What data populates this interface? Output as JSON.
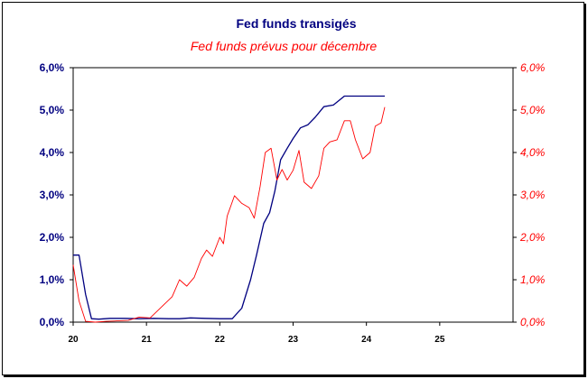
{
  "chart_data": {
    "type": "line",
    "title": "Fed funds transigés",
    "subtitle": "Fed funds prévus pour décembre",
    "xlabel": "",
    "ylabel_left": "",
    "ylabel_right": "",
    "xlim": [
      20,
      26
    ],
    "ylim": [
      0,
      6
    ],
    "x_ticks": [
      "20",
      "21",
      "22",
      "23",
      "24",
      "25"
    ],
    "y_ticks_left": [
      "0,0%",
      "1,0%",
      "2,0%",
      "3,0%",
      "4,0%",
      "5,0%",
      "6,0%"
    ],
    "y_ticks_right": [
      "0,0%",
      "1,0%",
      "2,0%",
      "3,0%",
      "4,0%",
      "5,0%",
      "6,0%"
    ],
    "grid": false,
    "legend": "none",
    "series": [
      {
        "name": "Fed funds transigés",
        "color": "#000080",
        "axis": "left",
        "x": [
          20.0,
          20.08,
          20.17,
          20.25,
          20.35,
          20.5,
          20.7,
          20.9,
          21.1,
          21.3,
          21.45,
          21.6,
          21.8,
          22.0,
          22.1,
          22.17,
          22.3,
          22.42,
          22.5,
          22.6,
          22.68,
          22.75,
          22.83,
          22.92,
          23.0,
          23.1,
          23.2,
          23.3,
          23.42,
          23.55,
          23.7,
          24.0,
          24.25
        ],
        "y": [
          1.58,
          1.58,
          0.65,
          0.08,
          0.07,
          0.09,
          0.09,
          0.08,
          0.09,
          0.08,
          0.08,
          0.1,
          0.09,
          0.08,
          0.08,
          0.08,
          0.33,
          1.0,
          1.57,
          2.33,
          2.58,
          3.08,
          3.83,
          4.1,
          4.33,
          4.58,
          4.65,
          4.83,
          5.08,
          5.12,
          5.33,
          5.33,
          5.33
        ]
      },
      {
        "name": "Fed funds prévus pour décembre",
        "color": "#ff0000",
        "axis": "right",
        "x": [
          20.0,
          20.08,
          20.17,
          20.3,
          20.45,
          20.6,
          20.75,
          20.9,
          21.05,
          21.2,
          21.35,
          21.45,
          21.55,
          21.65,
          21.75,
          21.82,
          21.9,
          22.0,
          22.05,
          22.1,
          22.2,
          22.3,
          22.4,
          22.47,
          22.55,
          22.62,
          22.7,
          22.78,
          22.85,
          22.92,
          23.0,
          23.08,
          23.15,
          23.25,
          23.35,
          23.42,
          23.5,
          23.6,
          23.7,
          23.78,
          23.85,
          23.95,
          24.05,
          24.12,
          24.2,
          24.25
        ],
        "y": [
          1.35,
          0.5,
          0.02,
          0.0,
          0.02,
          0.03,
          0.04,
          0.12,
          0.1,
          0.35,
          0.6,
          1.0,
          0.85,
          1.05,
          1.5,
          1.7,
          1.55,
          2.0,
          1.85,
          2.5,
          2.98,
          2.8,
          2.7,
          2.45,
          3.2,
          4.0,
          4.1,
          3.35,
          3.6,
          3.35,
          3.58,
          4.05,
          3.3,
          3.15,
          3.45,
          4.1,
          4.25,
          4.3,
          4.75,
          4.75,
          4.3,
          3.85,
          4.0,
          4.62,
          4.7,
          5.07
        ]
      }
    ]
  }
}
